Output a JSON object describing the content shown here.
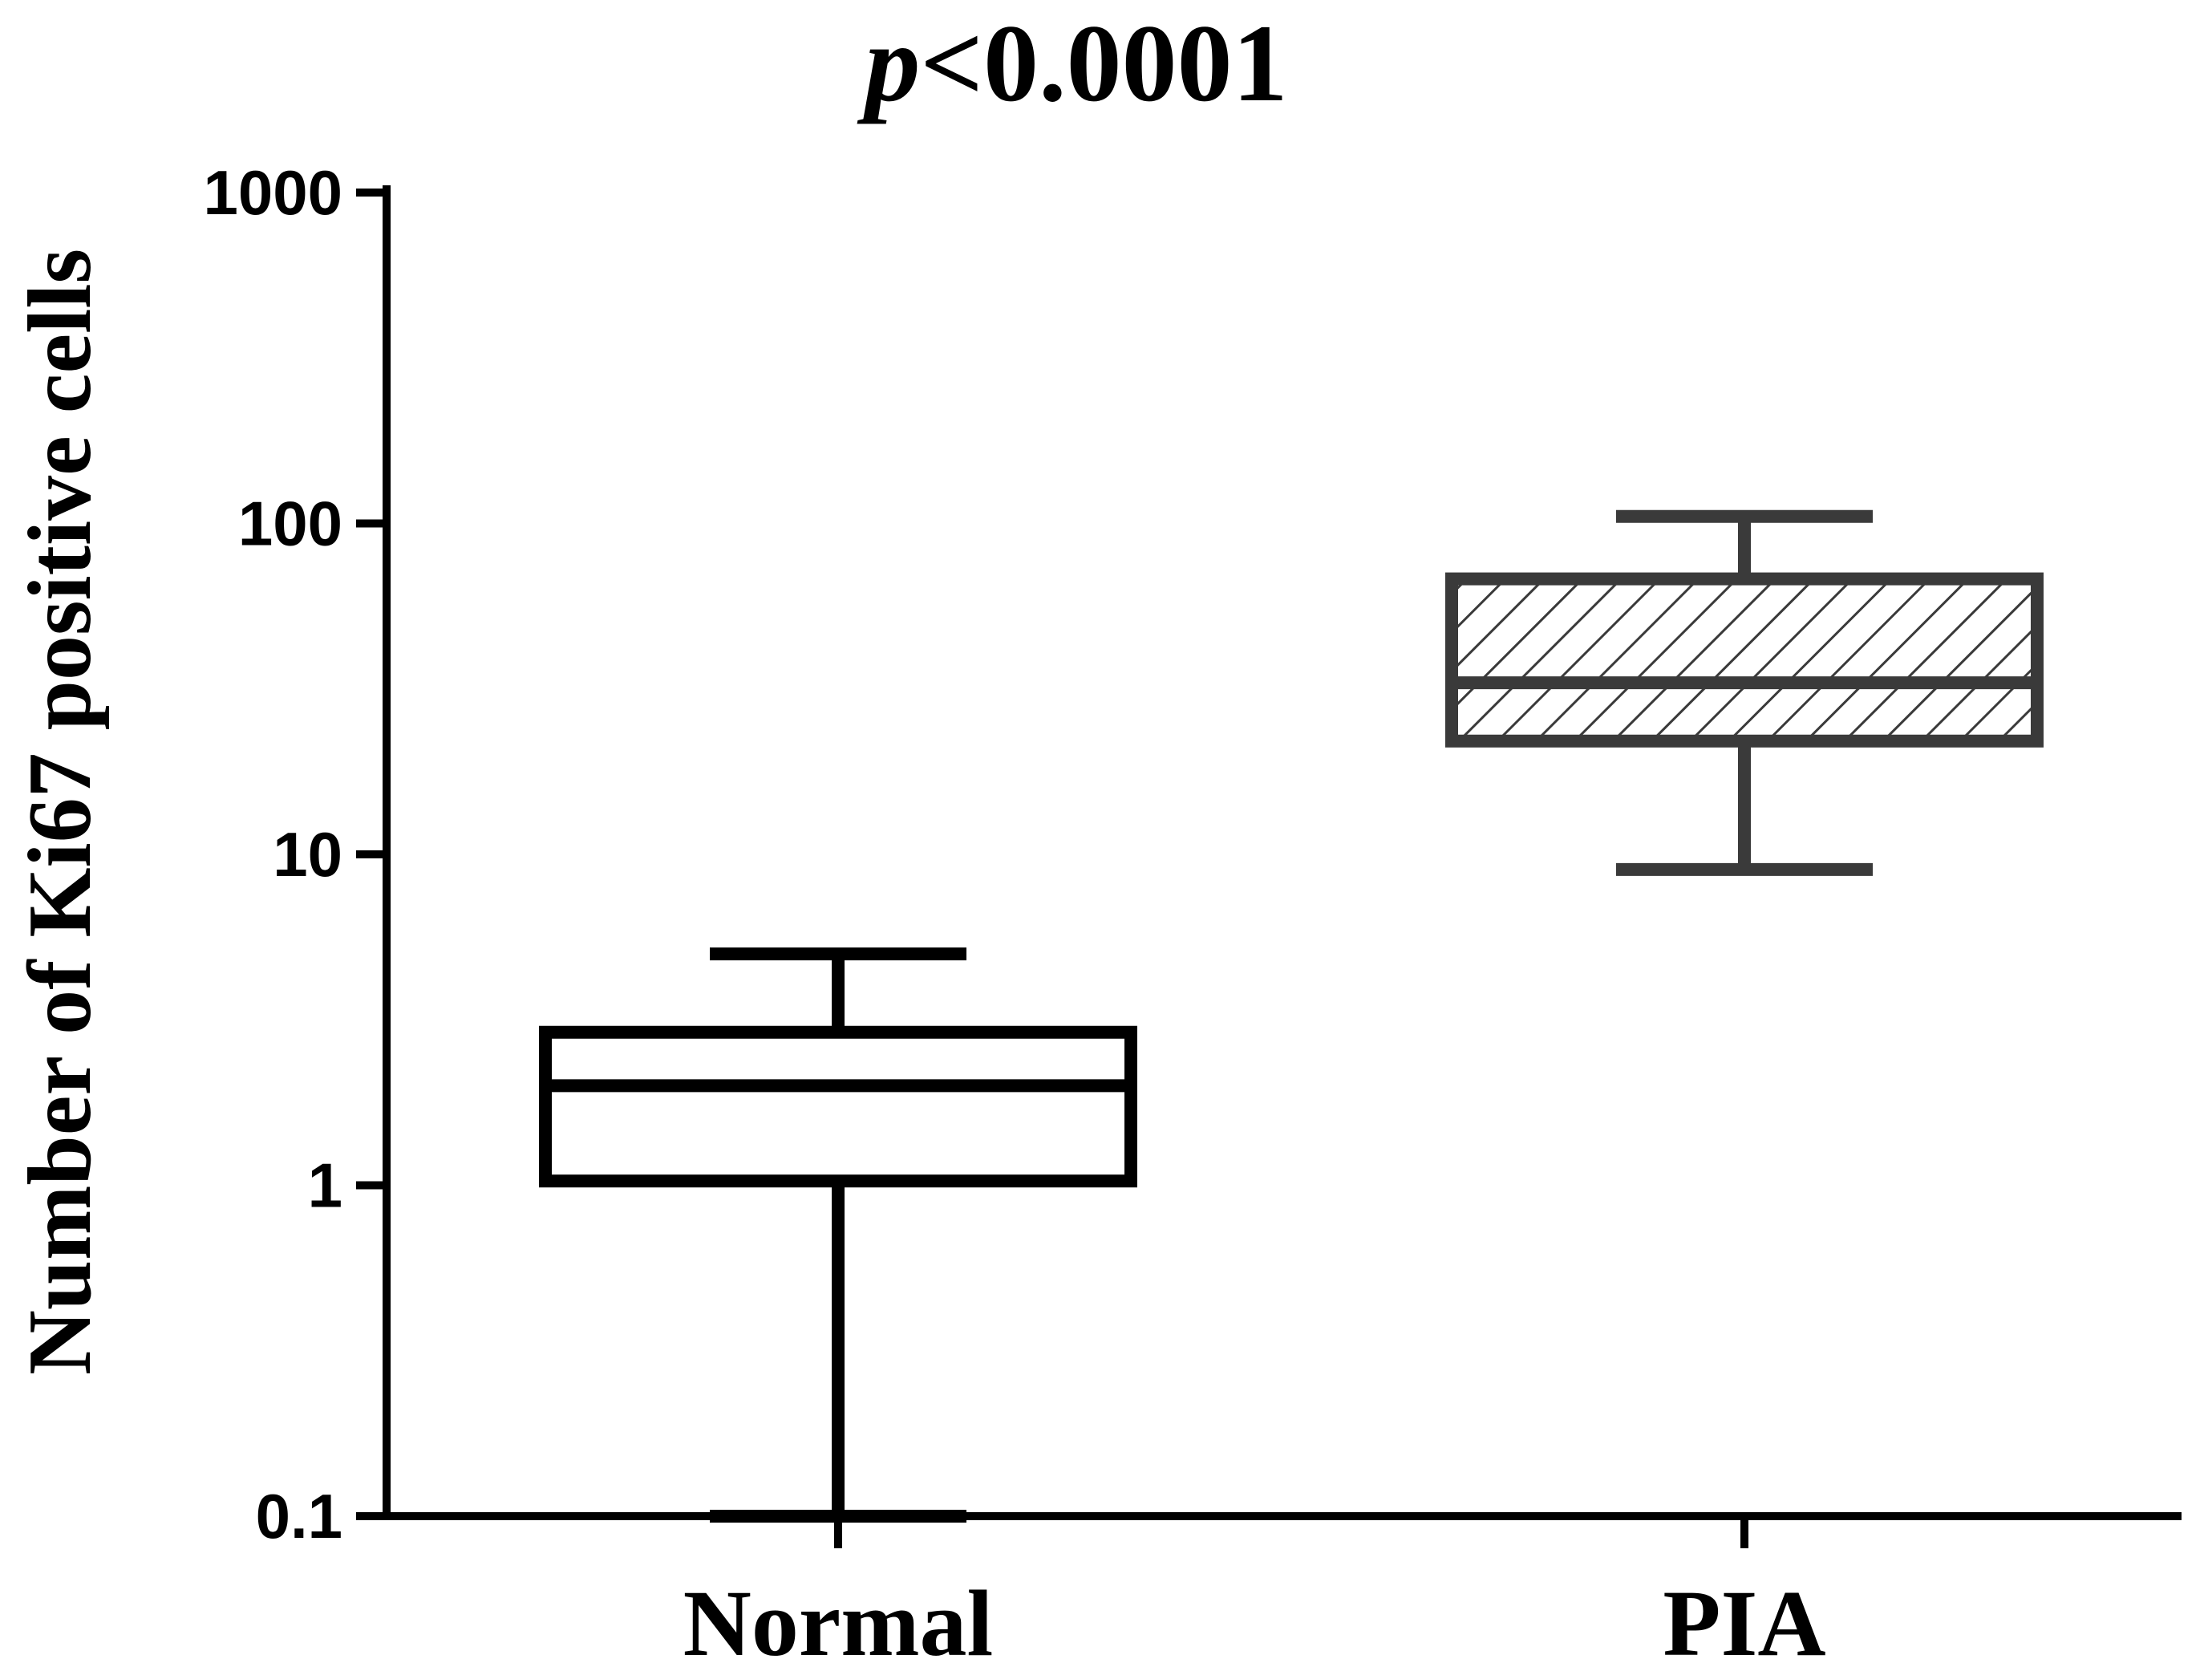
{
  "chart_data": {
    "type": "box",
    "title": {
      "italic_part": "p",
      "rest": "<0.0001"
    },
    "ylabel": "Number of Ki67 positive cells",
    "xlabel": "",
    "yscale": "log",
    "ylim": [
      0.1,
      1000
    ],
    "yticks": [
      {
        "value": 0.1,
        "label": "0.1"
      },
      {
        "value": 1,
        "label": "1"
      },
      {
        "value": 10,
        "label": "10"
      },
      {
        "value": 100,
        "label": "100"
      },
      {
        "value": 1000,
        "label": "1000"
      }
    ],
    "categories": [
      "Normal",
      "PIA"
    ],
    "series": [
      {
        "name": "Normal",
        "min": 0.1,
        "q1": 1.03,
        "median": 2.0,
        "q3": 2.9,
        "max": 5.0,
        "fill": "none",
        "stroke": "#000000"
      },
      {
        "name": "PIA",
        "min": 9.0,
        "q1": 22.0,
        "median": 33.0,
        "q3": 68.0,
        "max": 105.0,
        "fill": "hatched",
        "stroke": "#3a3a3a"
      }
    ]
  }
}
